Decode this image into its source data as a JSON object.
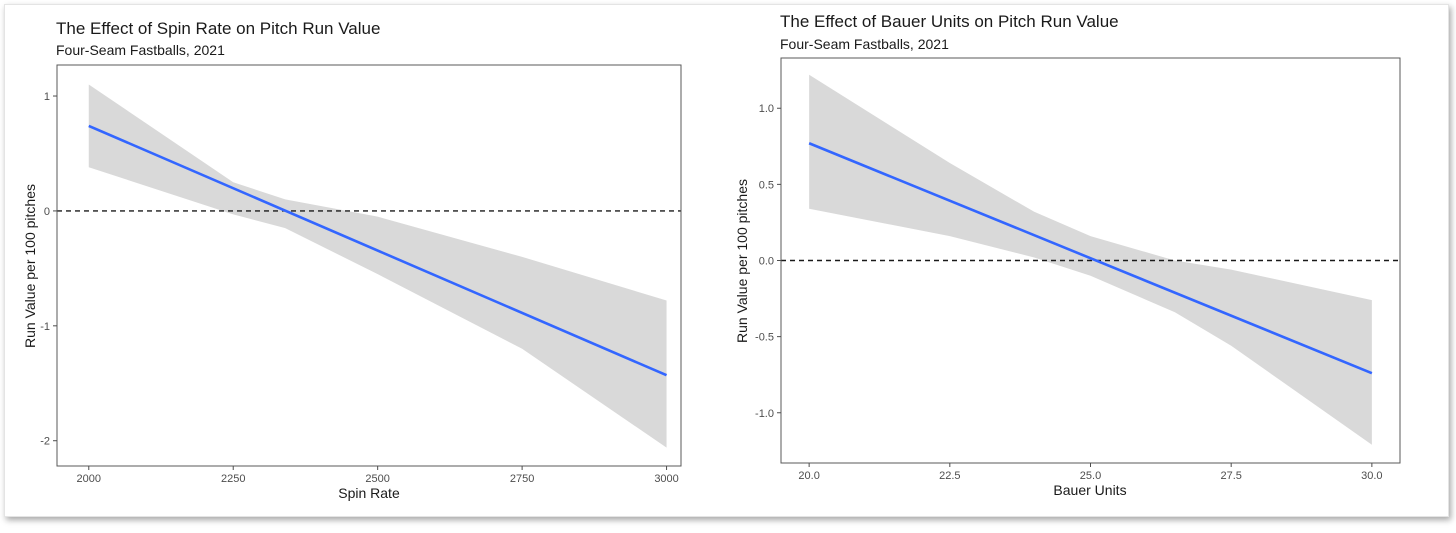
{
  "chart_data": [
    {
      "type": "line",
      "title": "The Effect of Spin Rate on Pitch Run Value",
      "subtitle": "Four-Seam Fastballs, 2021",
      "xlabel": "Spin Rate",
      "ylabel": "Run Value per 100 pitches",
      "xlim": [
        1945,
        3025
      ],
      "ylim": [
        -2.22,
        1.27
      ],
      "x_ticks": [
        2000,
        2250,
        2500,
        2750,
        3000
      ],
      "x_tick_labels": [
        "2000",
        "2250",
        "2500",
        "2750",
        "3000"
      ],
      "y_ticks": [
        1,
        0,
        -1,
        -2
      ],
      "y_tick_labels": [
        "1",
        "0",
        "-1",
        "-2"
      ],
      "reference_line": {
        "y": 0,
        "style": "dashed"
      },
      "series": [
        {
          "x": [
            2000,
            3000
          ],
          "values": [
            0.74,
            -1.43
          ]
        }
      ],
      "confidence_band": {
        "x": [
          2000,
          2250,
          2340,
          2500,
          2750,
          3000
        ],
        "upper": [
          1.1,
          0.25,
          0.1,
          -0.05,
          -0.4,
          -0.78
        ],
        "lower": [
          0.38,
          -0.03,
          -0.15,
          -0.55,
          -1.2,
          -2.06
        ]
      },
      "colors": {
        "line": "#3366ff",
        "band": "#d9d9d9",
        "reference": "#1a1a1a"
      },
      "grid": false
    },
    {
      "type": "line",
      "title": "The Effect of Bauer Units on Pitch Run Value",
      "subtitle": "Four-Seam Fastballs, 2021",
      "xlabel": "Bauer Units",
      "ylabel": "Run Value per 100 pitches",
      "xlim": [
        19.5,
        30.5
      ],
      "ylim": [
        -1.33,
        1.33
      ],
      "x_ticks": [
        20.0,
        22.5,
        25.0,
        27.5,
        30.0
      ],
      "x_tick_labels": [
        "20.0",
        "22.5",
        "25.0",
        "27.5",
        "30.0"
      ],
      "y_ticks": [
        1.0,
        0.5,
        0.0,
        -0.5,
        -1.0
      ],
      "y_tick_labels": [
        "1.0",
        "0.5",
        "0.0",
        "-0.5",
        "-1.0"
      ],
      "reference_line": {
        "y": 0,
        "style": "dashed"
      },
      "series": [
        {
          "x": [
            20.0,
            30.0
          ],
          "values": [
            0.77,
            -0.74
          ]
        }
      ],
      "confidence_band": {
        "x": [
          20.0,
          22.5,
          24.0,
          25.0,
          26.5,
          27.5,
          30.0
        ],
        "upper": [
          1.22,
          0.64,
          0.32,
          0.16,
          0.0,
          -0.06,
          -0.26
        ],
        "lower": [
          0.34,
          0.16,
          0.02,
          -0.1,
          -0.34,
          -0.56,
          -1.21
        ]
      },
      "colors": {
        "line": "#3366ff",
        "band": "#d9d9d9",
        "reference": "#1a1a1a"
      },
      "grid": false
    }
  ]
}
